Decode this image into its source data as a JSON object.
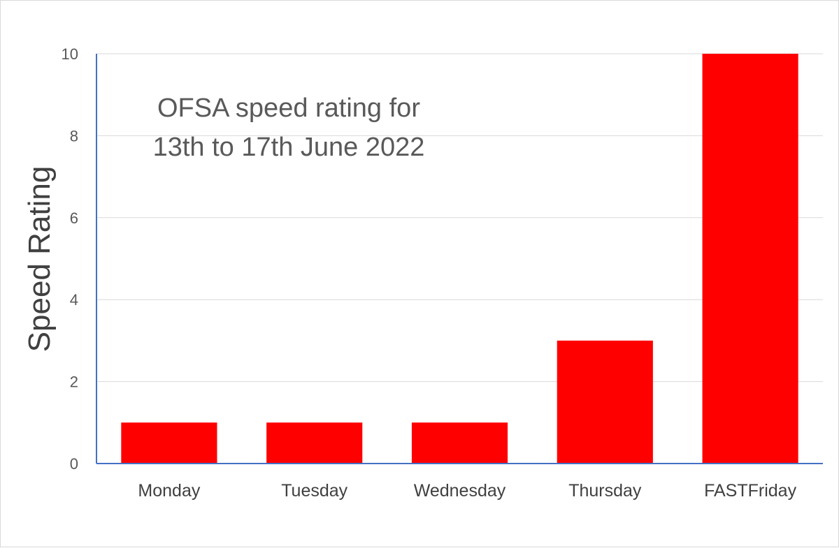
{
  "chart_data": {
    "type": "bar",
    "title_lines": [
      "OFSA speed rating for",
      "13th to 17th June 2022"
    ],
    "xlabel": "",
    "ylabel": "Speed Rating",
    "categories": [
      "Monday",
      "Tuesday",
      "Wednesday",
      "Thursday",
      "FASTFriday"
    ],
    "values": [
      1,
      1,
      1,
      3,
      10
    ],
    "ylim": [
      0,
      10
    ],
    "yticks": [
      0,
      2,
      4,
      6,
      8,
      10
    ],
    "grid": true,
    "legend": "none",
    "colors": {
      "bar": "#ff0000",
      "axis": "#4472c4",
      "grid": "#d9d9d9"
    }
  }
}
